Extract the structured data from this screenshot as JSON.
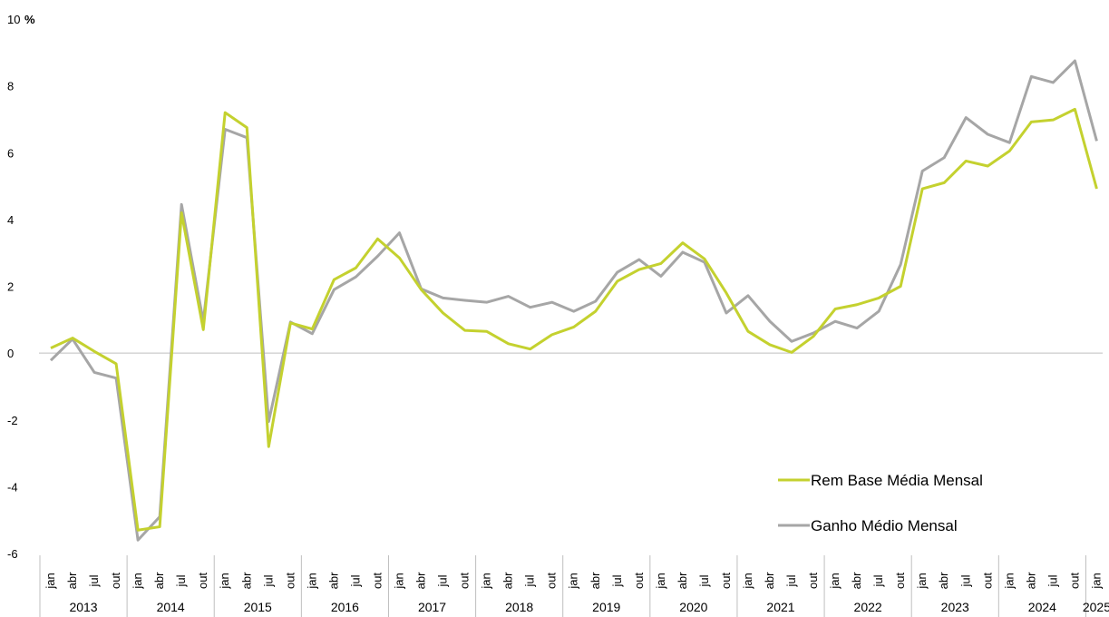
{
  "chart_data": {
    "type": "line",
    "ylabel": "%",
    "ylim": [
      -6,
      10
    ],
    "yticks": [
      -6,
      -4,
      -2,
      0,
      2,
      4,
      6,
      8,
      10
    ],
    "x": [
      "2013-01",
      "2013-04",
      "2013-07",
      "2013-10",
      "2014-01",
      "2014-04",
      "2014-07",
      "2014-10",
      "2015-01",
      "2015-04",
      "2015-07",
      "2015-10",
      "2016-01",
      "2016-04",
      "2016-07",
      "2016-10",
      "2017-01",
      "2017-04",
      "2017-07",
      "2017-10",
      "2018-01",
      "2018-04",
      "2018-07",
      "2018-10",
      "2019-01",
      "2019-04",
      "2019-07",
      "2019-10",
      "2020-01",
      "2020-04",
      "2020-07",
      "2020-10",
      "2021-01",
      "2021-04",
      "2021-07",
      "2021-10",
      "2022-01",
      "2022-04",
      "2022-07",
      "2022-10",
      "2023-01",
      "2023-04",
      "2023-07",
      "2023-10",
      "2024-01",
      "2024-04",
      "2024-07",
      "2024-10",
      "2025-01"
    ],
    "month_labels": [
      "jan",
      "abr",
      "jul",
      "out"
    ],
    "years": [
      "2013",
      "2014",
      "2015",
      "2016",
      "2017",
      "2018",
      "2019",
      "2020",
      "2021",
      "2022",
      "2023",
      "2024",
      "2025"
    ],
    "series": [
      {
        "name": "Rem Base Média Mensal",
        "color": "#c4d12f",
        "values": [
          0.15,
          0.45,
          0.05,
          -0.32,
          -5.3,
          -5.2,
          4.2,
          0.7,
          7.2,
          6.75,
          -2.8,
          0.9,
          0.72,
          2.2,
          2.55,
          3.42,
          2.85,
          1.9,
          1.2,
          0.68,
          0.65,
          0.28,
          0.12,
          0.55,
          0.78,
          1.25,
          2.15,
          2.5,
          2.68,
          3.3,
          2.82,
          1.8,
          0.65,
          0.25,
          0.02,
          0.5,
          1.32,
          1.45,
          1.65,
          2.0,
          4.92,
          5.1,
          5.75,
          5.6,
          6.05,
          6.92,
          6.98,
          7.3,
          4.92
        ]
      },
      {
        "name": "Ganho Médio Mensal",
        "color": "#a6a6a6",
        "values": [
          -0.22,
          0.42,
          -0.58,
          -0.75,
          -5.6,
          -4.9,
          4.45,
          0.95,
          6.7,
          6.45,
          -2.05,
          0.93,
          0.58,
          1.9,
          2.28,
          2.9,
          3.6,
          1.92,
          1.65,
          1.58,
          1.52,
          1.7,
          1.37,
          1.52,
          1.25,
          1.55,
          2.42,
          2.8,
          2.3,
          3.02,
          2.72,
          1.2,
          1.72,
          0.95,
          0.35,
          0.6,
          0.95,
          0.75,
          1.25,
          2.65,
          5.45,
          5.85,
          7.05,
          6.55,
          6.3,
          8.28,
          8.1,
          8.75,
          6.35
        ]
      }
    ],
    "legend": "bottom-right",
    "grid": false
  }
}
